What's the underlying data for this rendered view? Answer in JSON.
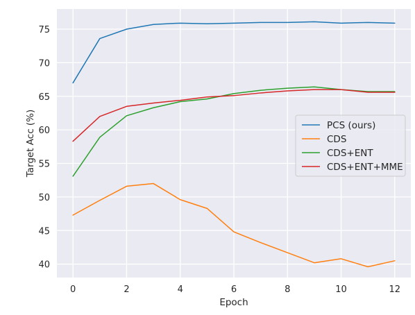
{
  "chart_data": {
    "type": "line",
    "xlabel": "Epoch",
    "ylabel": "Target Acc (%)",
    "xlim": [
      -0.6,
      12.6
    ],
    "ylim": [
      38,
      78
    ],
    "xticks": [
      "0",
      "2",
      "4",
      "6",
      "8",
      "10",
      "12"
    ],
    "yticks": [
      "40",
      "45",
      "50",
      "55",
      "60",
      "65",
      "70",
      "75"
    ],
    "x": [
      0,
      1,
      2,
      3,
      4,
      5,
      6,
      7,
      8,
      9,
      10,
      11,
      12
    ],
    "grid": true,
    "legend_position": "center-right",
    "series": [
      {
        "name": "PCS (ours)",
        "color": "#1f77b4",
        "values": [
          67.0,
          73.6,
          75.0,
          75.7,
          75.9,
          75.8,
          75.9,
          76.0,
          76.0,
          76.1,
          75.9,
          76.0,
          75.9
        ]
      },
      {
        "name": "CDS",
        "color": "#ff7f0e",
        "values": [
          47.3,
          49.5,
          51.6,
          52.0,
          49.6,
          48.3,
          44.8,
          43.2,
          41.7,
          40.2,
          40.8,
          39.6,
          40.5
        ]
      },
      {
        "name": "CDS+ENT",
        "color": "#2ca02c",
        "values": [
          53.1,
          58.9,
          62.1,
          63.3,
          64.2,
          64.6,
          65.4,
          65.9,
          66.2,
          66.4,
          66.0,
          65.7,
          65.7
        ]
      },
      {
        "name": "CDS+ENT+MME",
        "color": "#d62728",
        "values": [
          58.3,
          62.0,
          63.5,
          64.0,
          64.4,
          64.9,
          65.1,
          65.5,
          65.8,
          66.0,
          66.0,
          65.6,
          65.6
        ]
      }
    ]
  }
}
